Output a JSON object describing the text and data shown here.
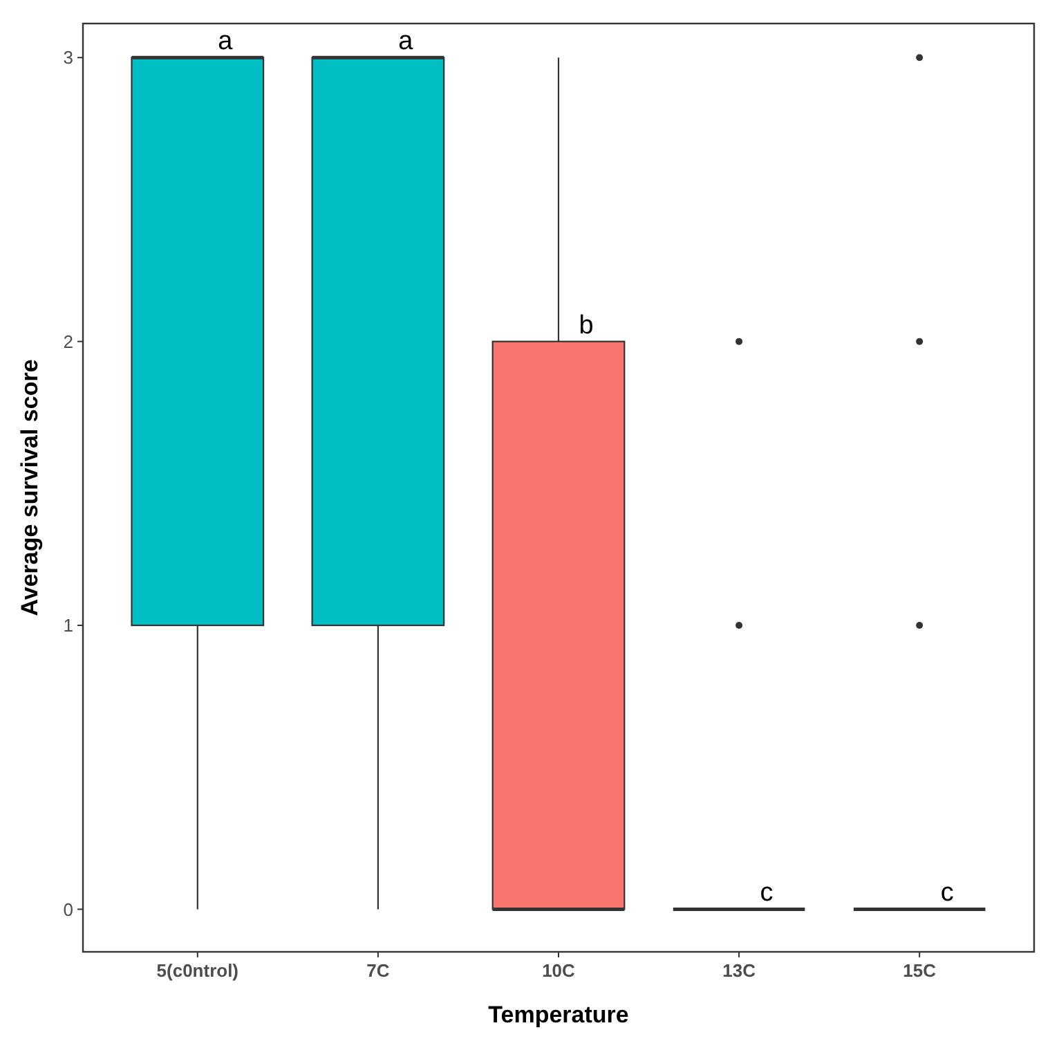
{
  "chart_data": {
    "type": "box",
    "xlabel": "Temperature",
    "ylabel": "Average survival score",
    "categories": [
      "5(c0ntrol)",
      "7C",
      "10C",
      "13C",
      "15C"
    ],
    "boxes": [
      {
        "low": 0,
        "q1": 1,
        "median": 3,
        "q3": 3,
        "high": 3
      },
      {
        "low": 0,
        "q1": 1,
        "median": 3,
        "q3": 3,
        "high": 3
      },
      {
        "low": 0,
        "q1": 0,
        "median": 0,
        "q3": 2,
        "high": 3
      },
      {
        "low": 0,
        "q1": 0,
        "median": 0,
        "q3": 0,
        "high": 0,
        "outliers": [
          1,
          2
        ]
      },
      {
        "low": 0,
        "q1": 0,
        "median": 0,
        "q3": 0,
        "high": 0,
        "outliers": [
          1,
          2,
          3
        ]
      }
    ],
    "colors": [
      "#00bfc4",
      "#00bfc4",
      "#f8766d",
      null,
      null
    ],
    "ylim": [
      -0.15,
      3.12
    ],
    "yticks": [
      0,
      1,
      2,
      3
    ],
    "grid": false,
    "annotations": [
      {
        "text": "a",
        "x": "5(c0ntrol)",
        "y": 3
      },
      {
        "text": "a",
        "x": "7C",
        "y": 3
      },
      {
        "text": "b",
        "x": "10C",
        "y": 2
      },
      {
        "text": "c",
        "x": "13C",
        "y": 0
      },
      {
        "text": "c",
        "x": "15C",
        "y": 0
      }
    ]
  }
}
